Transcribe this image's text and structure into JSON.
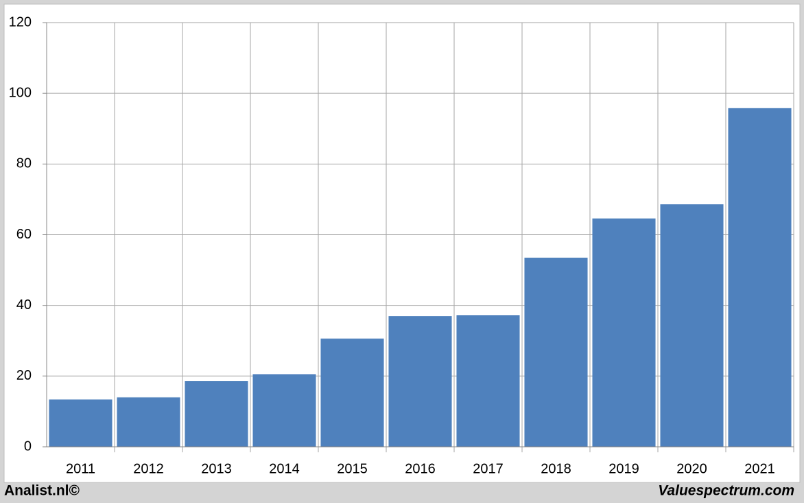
{
  "chart_data": {
    "type": "bar",
    "categories": [
      "2011",
      "2012",
      "2013",
      "2014",
      "2015",
      "2016",
      "2017",
      "2018",
      "2019",
      "2020",
      "2021"
    ],
    "values": [
      13.4,
      14.0,
      18.6,
      20.5,
      30.6,
      37.0,
      37.2,
      53.5,
      64.6,
      68.6,
      95.8
    ],
    "color": "#4f81bd",
    "ylim": [
      0,
      120
    ],
    "yticks": [
      0,
      20,
      40,
      60,
      80,
      100,
      120
    ],
    "grid": true,
    "annotations": [
      "Analist.nl©",
      "Valuespectrum.com"
    ]
  }
}
